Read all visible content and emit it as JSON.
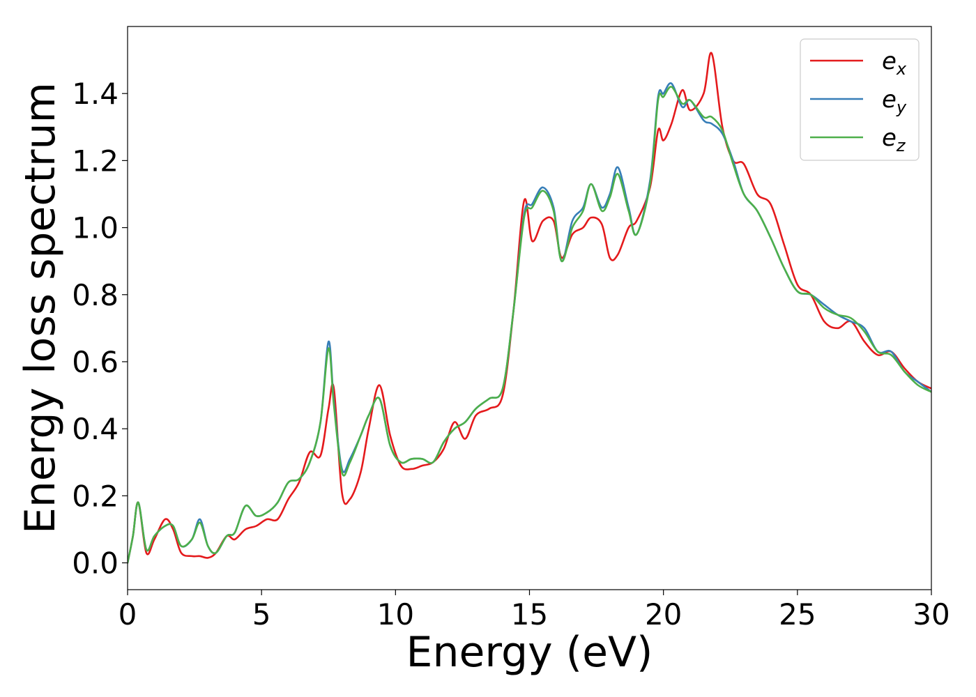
{
  "chart_data": {
    "type": "line",
    "title": "",
    "xlabel": "Energy (eV)",
    "ylabel": "Energy loss spectrum",
    "xlim": [
      0,
      30
    ],
    "ylim": [
      -0.08,
      1.6
    ],
    "xticks": [
      0,
      5,
      10,
      15,
      20,
      25,
      30
    ],
    "xtick_labels": [
      "0",
      "5",
      "10",
      "15",
      "20",
      "25",
      "30"
    ],
    "yticks": [
      0.0,
      0.2,
      0.4,
      0.6,
      0.8,
      1.0,
      1.2,
      1.4
    ],
    "ytick_labels": [
      "0.0",
      "0.2",
      "0.4",
      "0.6",
      "0.8",
      "1.0",
      "1.2",
      "1.4"
    ],
    "grid": false,
    "legend_position": "top-right",
    "x": [
      0,
      0.2,
      0.4,
      0.7,
      1.0,
      1.4,
      1.7,
      2.0,
      2.4,
      2.7,
      3.0,
      3.3,
      3.7,
      4.0,
      4.4,
      4.8,
      5.2,
      5.6,
      6.0,
      6.4,
      6.8,
      7.2,
      7.5,
      7.7,
      8.0,
      8.3,
      8.7,
      9.0,
      9.4,
      9.8,
      10.2,
      10.6,
      11.0,
      11.4,
      11.8,
      12.2,
      12.6,
      13.0,
      13.5,
      14.0,
      14.4,
      14.8,
      15.1,
      15.5,
      15.9,
      16.2,
      16.6,
      17.0,
      17.3,
      17.7,
      18.0,
      18.3,
      18.7,
      19.0,
      19.5,
      19.8,
      20.0,
      20.3,
      20.7,
      21.0,
      21.5,
      21.8,
      22.2,
      22.6,
      23.0,
      23.5,
      24.0,
      24.5,
      25.0,
      25.5,
      26.0,
      26.5,
      27.0,
      27.5,
      28.0,
      28.5,
      29.0,
      29.5,
      30.0
    ],
    "series": [
      {
        "name": "e",
        "name_subscript": "x",
        "color": "#e41a1c",
        "values": [
          0.0,
          0.08,
          0.18,
          0.03,
          0.07,
          0.13,
          0.1,
          0.03,
          0.02,
          0.02,
          0.015,
          0.03,
          0.08,
          0.07,
          0.1,
          0.11,
          0.13,
          0.13,
          0.19,
          0.24,
          0.33,
          0.32,
          0.46,
          0.52,
          0.21,
          0.19,
          0.27,
          0.4,
          0.53,
          0.38,
          0.29,
          0.28,
          0.29,
          0.3,
          0.34,
          0.42,
          0.37,
          0.44,
          0.46,
          0.5,
          0.75,
          1.08,
          0.96,
          1.02,
          1.02,
          0.91,
          0.98,
          1.0,
          1.03,
          1.01,
          0.91,
          0.92,
          1.0,
          1.02,
          1.12,
          1.29,
          1.26,
          1.31,
          1.41,
          1.35,
          1.4,
          1.52,
          1.3,
          1.2,
          1.19,
          1.1,
          1.07,
          0.95,
          0.83,
          0.8,
          0.72,
          0.7,
          0.72,
          0.66,
          0.62,
          0.63,
          0.58,
          0.54,
          0.52
        ]
      },
      {
        "name": "e",
        "name_subscript": "y",
        "color": "#377eb8",
        "values": [
          0.0,
          0.08,
          0.18,
          0.04,
          0.08,
          0.11,
          0.11,
          0.05,
          0.07,
          0.13,
          0.05,
          0.03,
          0.08,
          0.09,
          0.17,
          0.14,
          0.15,
          0.18,
          0.24,
          0.25,
          0.3,
          0.42,
          0.66,
          0.48,
          0.28,
          0.31,
          0.38,
          0.44,
          0.49,
          0.35,
          0.3,
          0.31,
          0.31,
          0.3,
          0.36,
          0.4,
          0.42,
          0.46,
          0.49,
          0.52,
          0.75,
          1.04,
          1.07,
          1.12,
          1.06,
          0.9,
          1.02,
          1.06,
          1.13,
          1.06,
          1.1,
          1.18,
          1.06,
          0.98,
          1.14,
          1.39,
          1.4,
          1.43,
          1.36,
          1.38,
          1.32,
          1.31,
          1.28,
          1.2,
          1.1,
          1.05,
          0.97,
          0.88,
          0.81,
          0.8,
          0.77,
          0.74,
          0.72,
          0.7,
          0.63,
          0.63,
          0.57,
          0.54,
          0.51
        ]
      },
      {
        "name": "e",
        "name_subscript": "z",
        "color": "#4daf4a",
        "values": [
          0.0,
          0.08,
          0.18,
          0.04,
          0.08,
          0.11,
          0.11,
          0.05,
          0.07,
          0.12,
          0.05,
          0.03,
          0.08,
          0.09,
          0.17,
          0.14,
          0.15,
          0.18,
          0.24,
          0.25,
          0.3,
          0.42,
          0.64,
          0.47,
          0.27,
          0.3,
          0.38,
          0.44,
          0.49,
          0.35,
          0.3,
          0.31,
          0.31,
          0.3,
          0.36,
          0.4,
          0.42,
          0.46,
          0.49,
          0.52,
          0.75,
          1.03,
          1.06,
          1.11,
          1.05,
          0.9,
          1.0,
          1.05,
          1.13,
          1.05,
          1.09,
          1.16,
          1.05,
          0.98,
          1.13,
          1.38,
          1.39,
          1.42,
          1.37,
          1.38,
          1.33,
          1.33,
          1.29,
          1.19,
          1.1,
          1.05,
          0.97,
          0.88,
          0.81,
          0.8,
          0.76,
          0.74,
          0.73,
          0.69,
          0.63,
          0.62,
          0.57,
          0.53,
          0.51
        ]
      }
    ]
  }
}
